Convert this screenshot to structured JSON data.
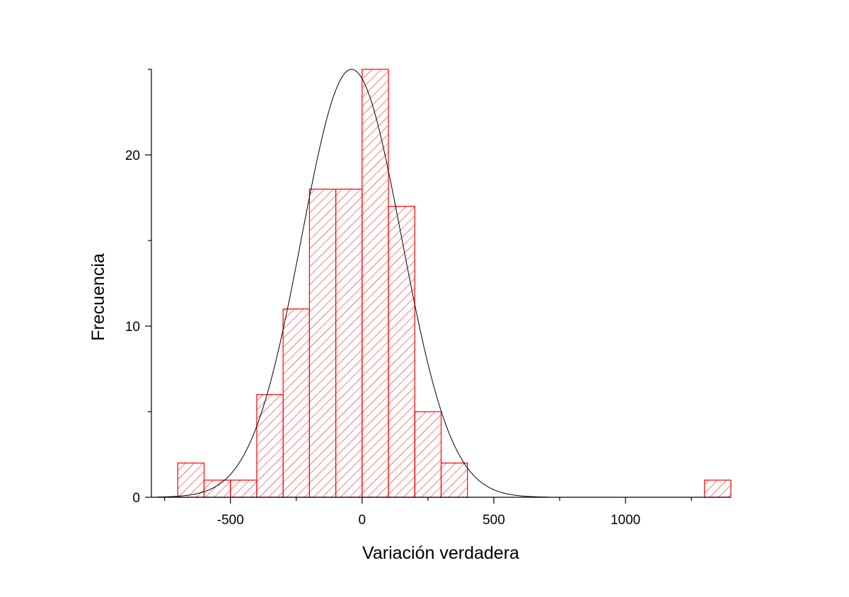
{
  "chart_data": {
    "type": "bar",
    "title": "",
    "xlabel": "Variación verdadera",
    "ylabel": "Frecuencia",
    "xlim": [
      -800,
      1400
    ],
    "ylim": [
      0,
      25
    ],
    "x_ticks": [
      {
        "value": -500,
        "label": "-500"
      },
      {
        "value": 0,
        "label": "0"
      },
      {
        "value": 500,
        "label": "500"
      },
      {
        "value": 1000,
        "label": "1000"
      }
    ],
    "x_minor_ticks": [
      -750,
      -250,
      250,
      750,
      1250
    ],
    "y_ticks": [
      {
        "value": 0,
        "label": "0"
      },
      {
        "value": 10,
        "label": "10"
      },
      {
        "value": 20,
        "label": "20"
      }
    ],
    "y_minor_ticks": [
      5,
      15,
      25
    ],
    "bins": [
      {
        "from": -700,
        "to": -600,
        "count": 2
      },
      {
        "from": -600,
        "to": -500,
        "count": 1
      },
      {
        "from": -500,
        "to": -400,
        "count": 1
      },
      {
        "from": -400,
        "to": -300,
        "count": 6
      },
      {
        "from": -300,
        "to": -200,
        "count": 11
      },
      {
        "from": -200,
        "to": -100,
        "count": 18
      },
      {
        "from": -100,
        "to": 0,
        "count": 18
      },
      {
        "from": 0,
        "to": 100,
        "count": 25
      },
      {
        "from": 100,
        "to": 200,
        "count": 17
      },
      {
        "from": 200,
        "to": 300,
        "count": 5
      },
      {
        "from": 300,
        "to": 400,
        "count": 2
      },
      {
        "from": 1300,
        "to": 1400,
        "count": 1
      }
    ],
    "fit_curve": {
      "type": "normal",
      "mean": -40,
      "sd": 190,
      "peak": 25,
      "x_range": [
        -780,
        710
      ],
      "color": "#000000"
    },
    "bar_color": "#ff0000",
    "bar_fill": "diagonal-hatch",
    "grid": false,
    "legend": "none"
  }
}
